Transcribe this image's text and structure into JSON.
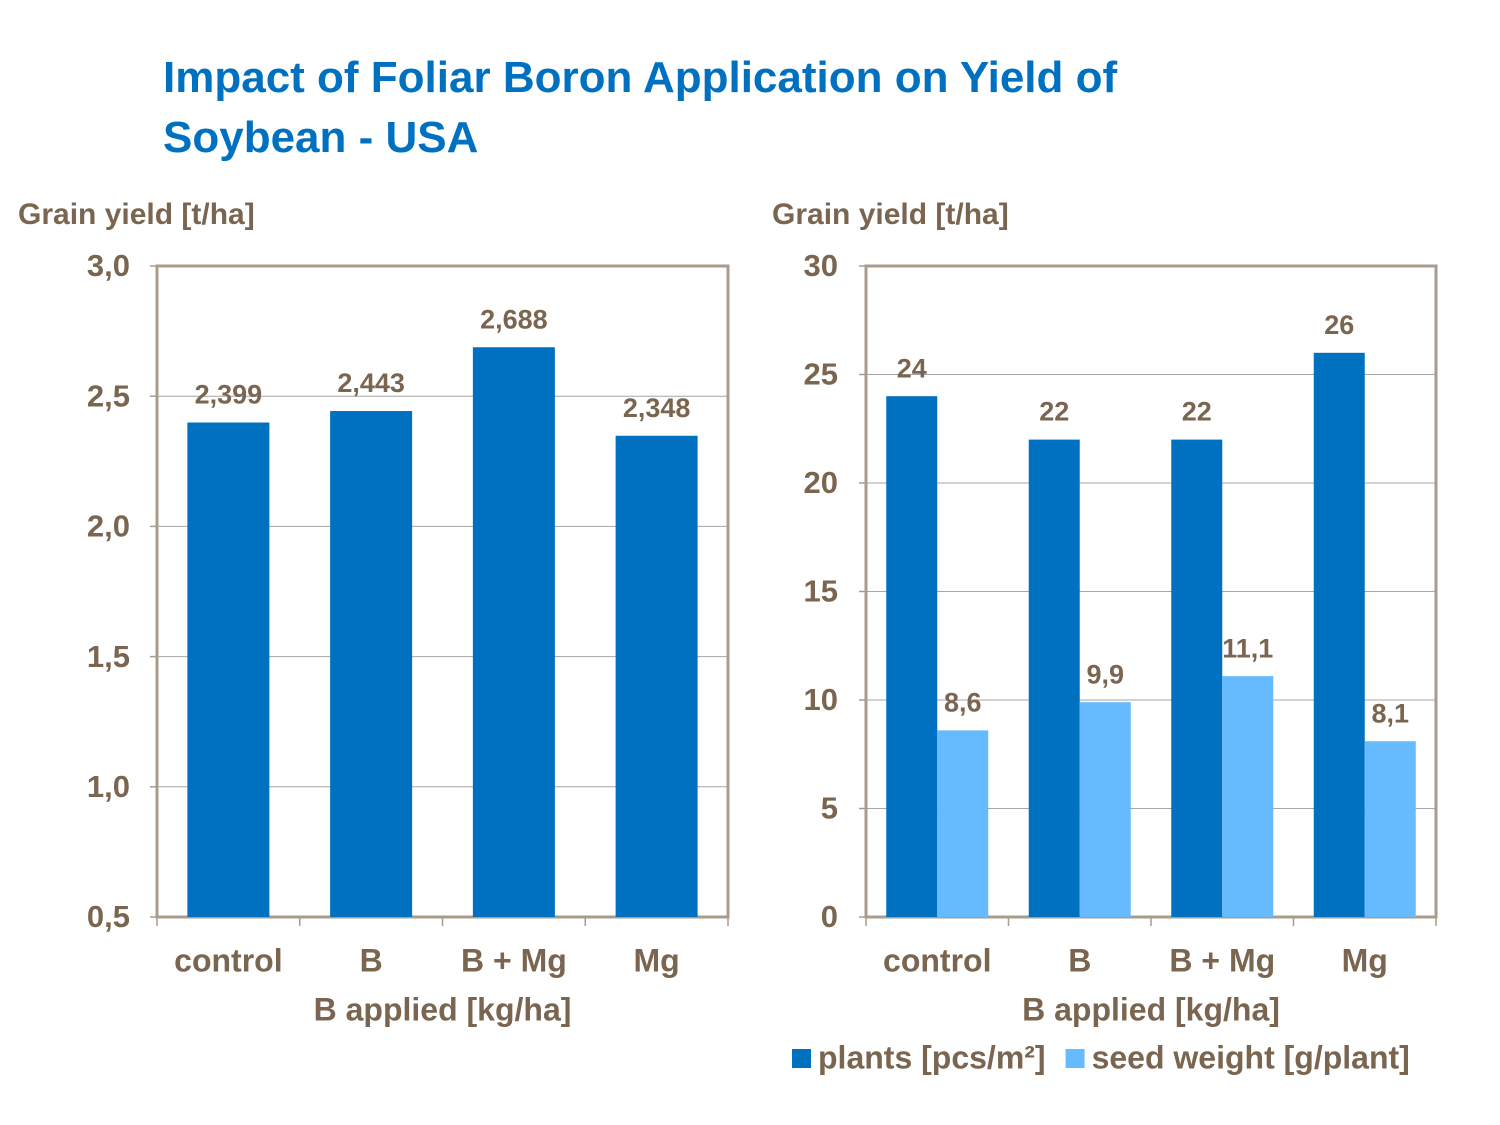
{
  "title": "Impact of Foliar Boron Application on Yield of Soybean - USA",
  "chart_data": [
    {
      "type": "bar",
      "y_label": "Grain yield [t/ha]",
      "x_label": "B applied [kg/ha]",
      "categories": [
        "control",
        "B",
        "B + Mg",
        "Mg"
      ],
      "values": [
        2.399,
        2.443,
        2.688,
        2.348
      ],
      "value_labels": [
        "2,399",
        "2,443",
        "2,688",
        "2,348"
      ],
      "color": "#0070c0",
      "ylim": [
        0.5,
        3.0
      ],
      "yticks": [
        {
          "value": 0.5,
          "label": "0,5"
        },
        {
          "value": 1.0,
          "label": "1,0"
        },
        {
          "value": 1.5,
          "label": "1,5"
        },
        {
          "value": 2.0,
          "label": "2,0"
        },
        {
          "value": 2.5,
          "label": "2,5"
        },
        {
          "value": 3.0,
          "label": "3,0"
        }
      ],
      "grid": true
    },
    {
      "type": "bar",
      "y_label": "Grain yield [t/ha]",
      "x_label": "B applied [kg/ha]",
      "categories": [
        "control",
        "B",
        "B + Mg",
        "Mg"
      ],
      "series": [
        {
          "name": "plants [pcs/m²]",
          "color": "#0070c0",
          "values": [
            24,
            22,
            22,
            26
          ]
        },
        {
          "name": "seed weight [g/plant]",
          "color": "#66bbff",
          "values": [
            8.6,
            9.9,
            11.1,
            8.1
          ],
          "value_labels": [
            "8,6",
            "9,9",
            "11,1",
            "8,1"
          ]
        }
      ],
      "ylim": [
        0,
        30
      ],
      "yticks": [
        0,
        5,
        10,
        15,
        20,
        25,
        30
      ],
      "grid": true,
      "legend": "bottom"
    }
  ]
}
